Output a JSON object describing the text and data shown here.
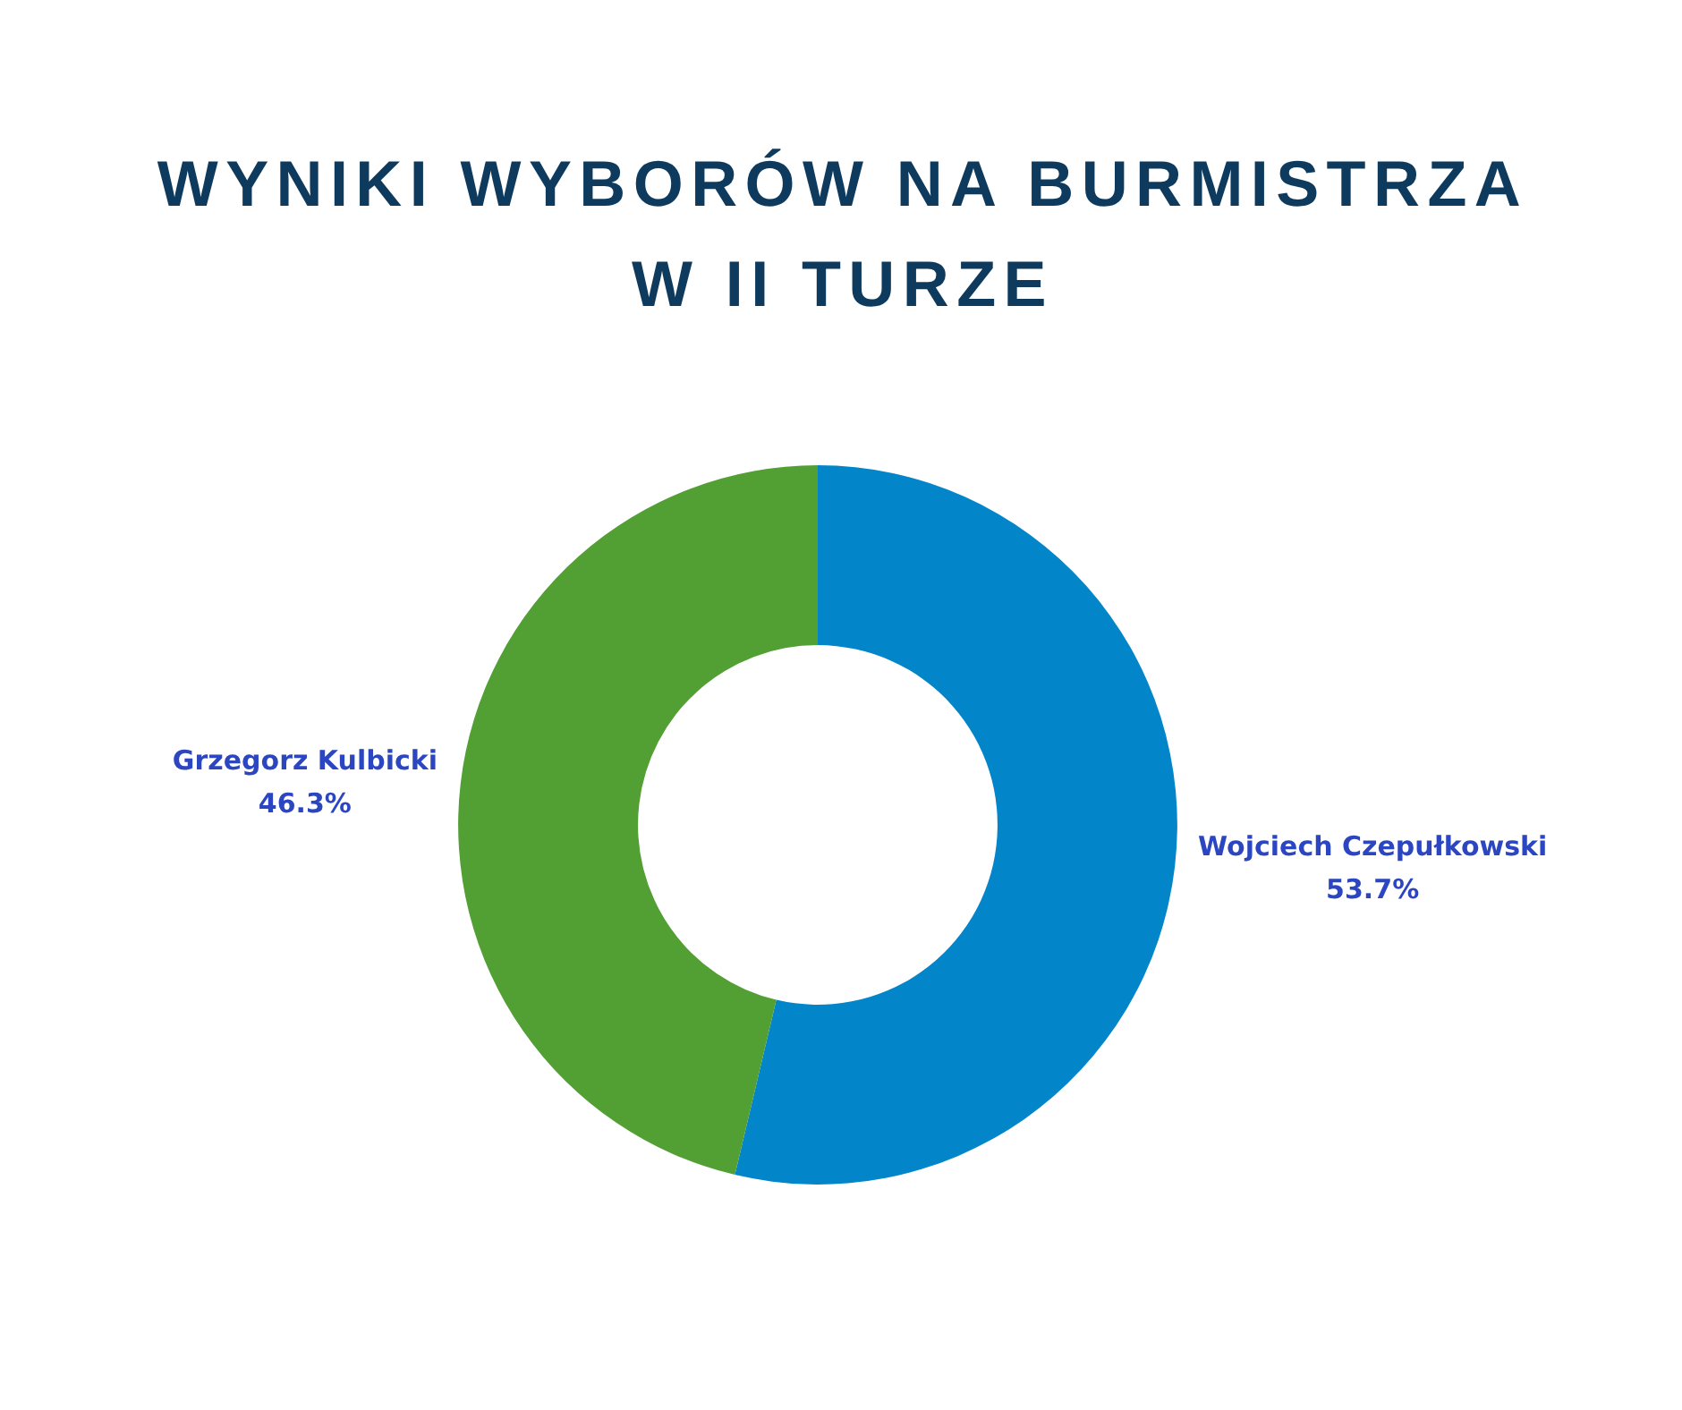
{
  "chart_data": {
    "type": "donut",
    "title": "WYNIKI WYBORÓW NA BURMISTRZA W II TURZE",
    "categories": [
      "Wojciech Czepułkowski",
      "Grzegorz Kulbicki"
    ],
    "values": [
      53.7,
      46.3
    ],
    "colors": [
      "#0385c9",
      "#529f33"
    ],
    "value_labels": [
      "53.7%",
      "46.3%"
    ]
  }
}
